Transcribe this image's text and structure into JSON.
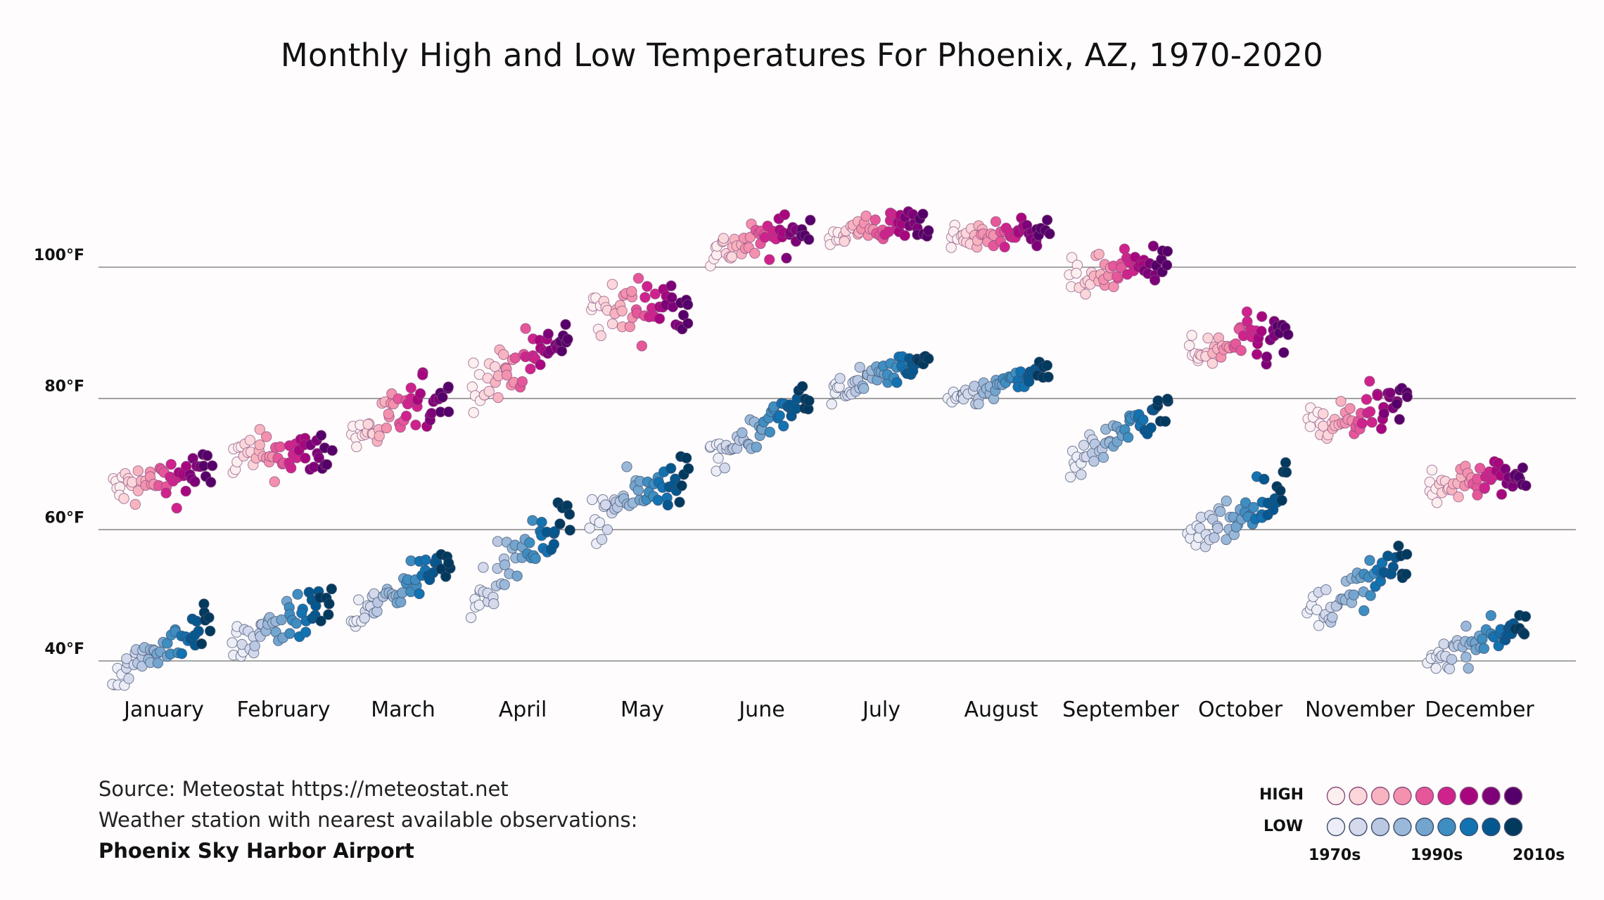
{
  "chart_data": {
    "type": "scatter",
    "title": "Monthly High and Low Temperatures For Phoenix, AZ, 1970-2020",
    "xlabel": "",
    "ylabel": "",
    "categories": [
      "January",
      "February",
      "March",
      "April",
      "May",
      "June",
      "July",
      "August",
      "September",
      "October",
      "November",
      "December"
    ],
    "y_ticks": [
      {
        "value": 40,
        "label": "40°F"
      },
      {
        "value": 60,
        "label": "60°F"
      },
      {
        "value": 80,
        "label": "80°F"
      },
      {
        "value": 100,
        "label": "100°F"
      }
    ],
    "ylim": [
      34,
      111
    ],
    "grid": "horizontal",
    "years": [
      1970,
      2020
    ],
    "series": [
      {
        "name": "HIGH",
        "start": [
          66,
          71,
          74,
          82,
          93,
          102,
          105,
          104,
          98,
          86,
          75,
          67
        ],
        "end": [
          69,
          72,
          81,
          89,
          95,
          106,
          107,
          106,
          101,
          90,
          79,
          68
        ],
        "spread": [
          3.2,
          3.2,
          3.8,
          3.6,
          3.8,
          2.6,
          2.2,
          2.0,
          2.6,
          3.6,
          3.4,
          2.6
        ]
      },
      {
        "name": "LOW",
        "start": [
          38,
          42,
          46,
          50,
          62,
          71,
          81,
          79,
          70,
          58,
          47,
          40
        ],
        "end": [
          46,
          49,
          56,
          62,
          69,
          80,
          86,
          85,
          79,
          67,
          55,
          46
        ],
        "spread": [
          2.6,
          2.8,
          2.8,
          3.0,
          3.2,
          2.6,
          1.8,
          1.8,
          2.6,
          3.2,
          3.0,
          2.4
        ]
      }
    ]
  },
  "colors": {
    "high": [
      "#fcefef",
      "#fbd6da",
      "#f7b4c0",
      "#f391ae",
      "#e6579a",
      "#cf228c",
      "#a8067f",
      "#7e0179",
      "#55006a"
    ],
    "low": [
      "#ecedf6",
      "#d4d9ec",
      "#bac8e2",
      "#9ab8d8",
      "#73a5ce",
      "#3e8ec1",
      "#1273b2",
      "#04588f",
      "#023a5e"
    ],
    "high_stroke": "#8a4a7c",
    "low_stroke": "#3c4d6e",
    "gridline": "#8a8a8a",
    "background": "#fefcfd"
  },
  "notes": {
    "source": "Source: Meteostat https://meteostat.net",
    "station_note": "Weather station with nearest available observations:",
    "station": "Phoenix Sky Harbor Airport"
  },
  "legend": {
    "high_label": "HIGH",
    "low_label": "LOW",
    "decades": [
      "1970s",
      "1990s",
      "2010s"
    ]
  }
}
